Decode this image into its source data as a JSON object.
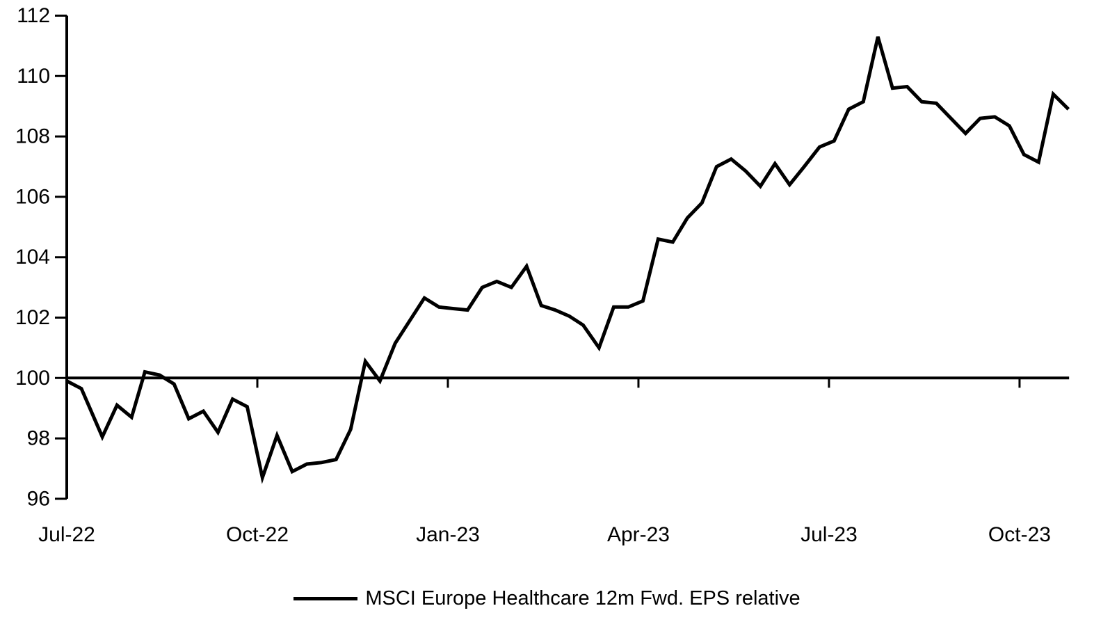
{
  "chart_data": {
    "type": "line",
    "title": "",
    "background": "#ffffff",
    "grid": false,
    "legend_position": "bottom-center",
    "series": [
      {
        "name": "MSCI Europe Healthcare 12m Fwd. EPS relative",
        "color": "#000000",
        "points": [
          [
            0.0,
            99.9
          ],
          [
            0.23,
            99.65
          ],
          [
            0.56,
            98.05
          ],
          [
            0.79,
            99.1
          ],
          [
            1.02,
            98.7
          ],
          [
            1.23,
            100.2
          ],
          [
            1.46,
            100.1
          ],
          [
            1.69,
            99.8
          ],
          [
            1.92,
            98.65
          ],
          [
            2.15,
            98.9
          ],
          [
            2.38,
            98.2
          ],
          [
            2.61,
            99.3
          ],
          [
            2.84,
            99.05
          ],
          [
            3.08,
            96.7
          ],
          [
            3.31,
            98.1
          ],
          [
            3.55,
            96.9
          ],
          [
            3.78,
            97.15
          ],
          [
            4.01,
            97.2
          ],
          [
            4.24,
            97.3
          ],
          [
            4.47,
            98.3
          ],
          [
            4.7,
            100.55
          ],
          [
            4.93,
            99.9
          ],
          [
            5.17,
            101.15
          ],
          [
            5.4,
            101.9
          ],
          [
            5.63,
            102.65
          ],
          [
            5.86,
            102.35
          ],
          [
            6.08,
            102.3
          ],
          [
            6.31,
            102.25
          ],
          [
            6.54,
            103.0
          ],
          [
            6.77,
            103.2
          ],
          [
            7.0,
            103.0
          ],
          [
            7.24,
            103.7
          ],
          [
            7.47,
            102.4
          ],
          [
            7.69,
            102.25
          ],
          [
            7.91,
            102.05
          ],
          [
            8.13,
            101.75
          ],
          [
            8.38,
            101.0
          ],
          [
            8.61,
            102.35
          ],
          [
            8.84,
            102.35
          ],
          [
            9.07,
            102.55
          ],
          [
            9.31,
            104.6
          ],
          [
            9.54,
            104.5
          ],
          [
            9.77,
            105.3
          ],
          [
            10.0,
            105.8
          ],
          [
            10.23,
            107.0
          ],
          [
            10.46,
            107.25
          ],
          [
            10.69,
            106.85
          ],
          [
            10.92,
            106.35
          ],
          [
            11.15,
            107.1
          ],
          [
            11.38,
            106.4
          ],
          [
            11.61,
            107.0
          ],
          [
            11.85,
            107.65
          ],
          [
            12.08,
            107.85
          ],
          [
            12.31,
            108.9
          ],
          [
            12.54,
            109.15
          ],
          [
            12.77,
            111.3
          ],
          [
            13.0,
            109.6
          ],
          [
            13.23,
            109.65
          ],
          [
            13.46,
            109.15
          ],
          [
            13.69,
            109.1
          ],
          [
            13.92,
            108.6
          ],
          [
            14.15,
            108.1
          ],
          [
            14.38,
            108.6
          ],
          [
            14.61,
            108.65
          ],
          [
            14.84,
            108.35
          ],
          [
            15.07,
            107.4
          ],
          [
            15.3,
            107.15
          ],
          [
            15.53,
            109.4
          ],
          [
            15.77,
            108.9
          ]
        ]
      }
    ],
    "x_axis": {
      "unit": "months since Jul-2022",
      "range": [
        0,
        15.78
      ],
      "tick_positions": [
        0,
        3,
        6,
        9,
        12,
        15
      ],
      "tick_labels": [
        "Jul-22",
        "Oct-22",
        "Jan-23",
        "Apr-23",
        "Jul-23",
        "Oct-23"
      ],
      "baseline_value": 100
    },
    "y_axis": {
      "range": [
        96,
        112
      ],
      "ticks": [
        96,
        98,
        100,
        102,
        104,
        106,
        108,
        110,
        112
      ]
    }
  }
}
